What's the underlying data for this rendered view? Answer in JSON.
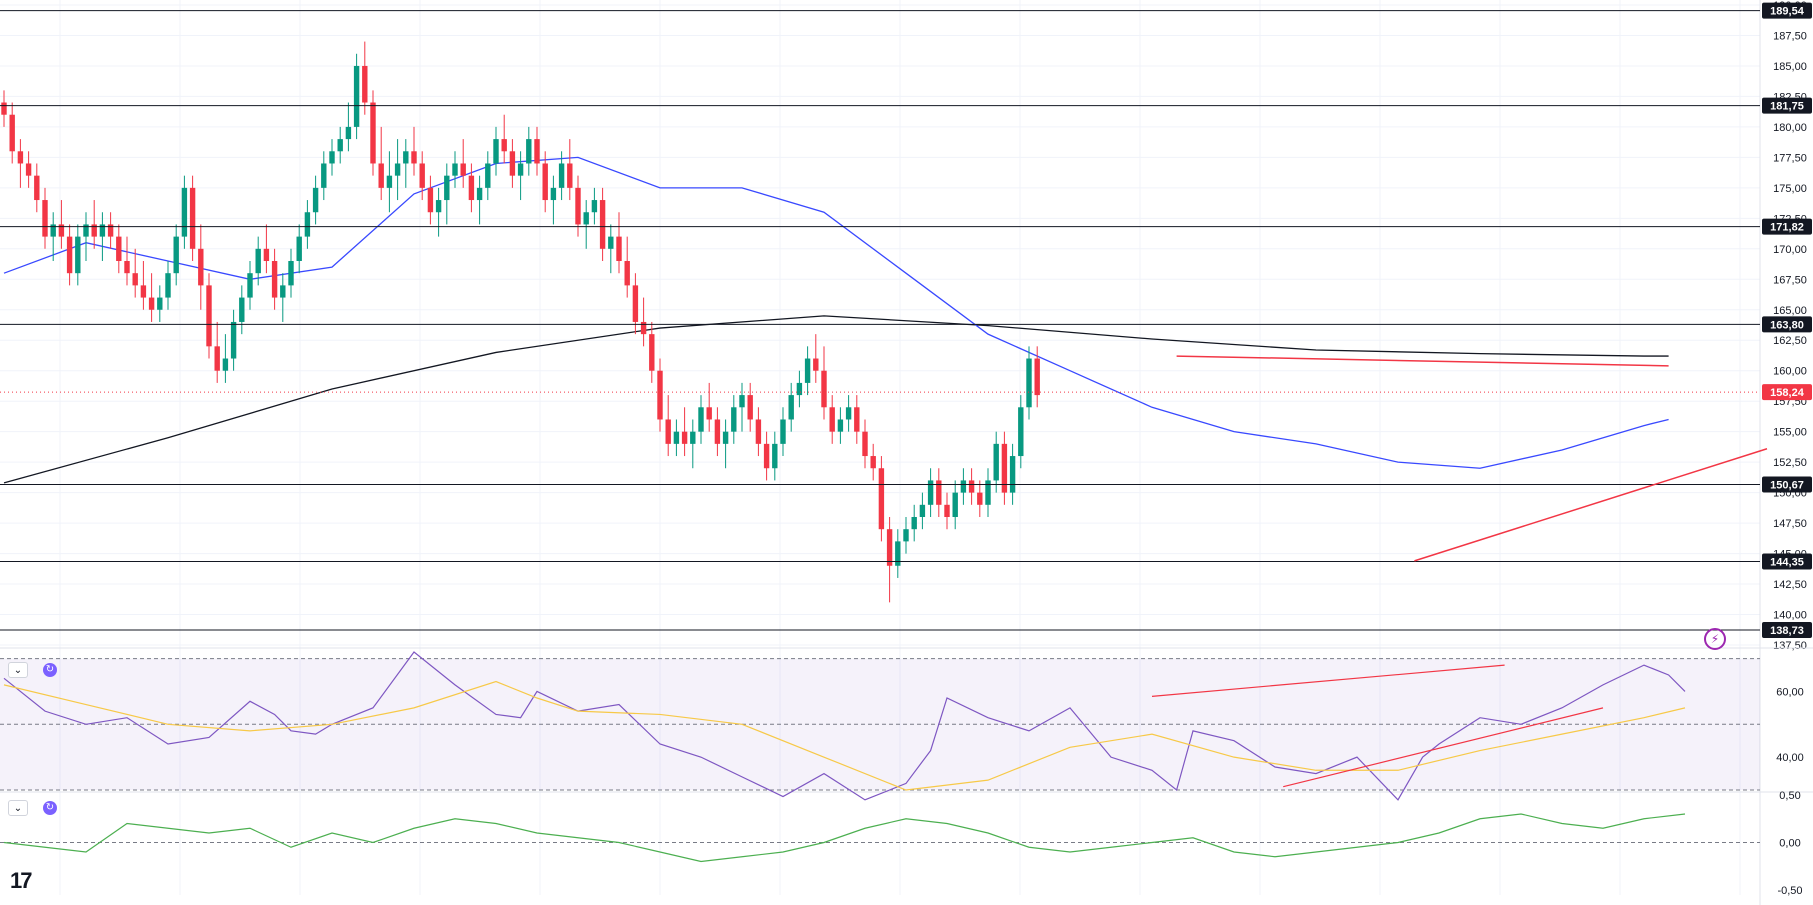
{
  "chart_data": [
    {
      "type": "candlestick",
      "title": "",
      "x_count": 216,
      "ylim": [
        137.5,
        190.0
      ],
      "price_ticks": [
        "137,50",
        "140,00",
        "142,50",
        "145,00",
        "147,50",
        "150,00",
        "152,50",
        "155,00",
        "157,50",
        "160,00",
        "162,50",
        "165,00",
        "167,50",
        "170,00",
        "172,50",
        "175,00",
        "177,50",
        "180,00",
        "182,50",
        "185,00",
        "187,50",
        "190,00"
      ],
      "current_price": {
        "label": "158,24",
        "value": 158.24,
        "color": "#f23645"
      },
      "horizontal_levels": [
        {
          "value": 189.54,
          "label": "189,54"
        },
        {
          "value": 181.75,
          "label": "181,75"
        },
        {
          "value": 171.82,
          "label": "171,82"
        },
        {
          "value": 163.8,
          "label": "163,80"
        },
        {
          "value": 150.67,
          "label": "150,67"
        },
        {
          "value": 144.35,
          "label": "144,35"
        },
        {
          "value": 138.73,
          "label": "138,73"
        }
      ],
      "trendlines": [
        {
          "name": "",
          "color": "#f23645",
          "from": [
            143,
            161.2
          ],
          "to": [
            203,
            160.4
          ]
        },
        {
          "name": "",
          "color": "#f23645",
          "from": [
            172,
            144.4
          ],
          "to": [
            215,
            153.6
          ]
        }
      ],
      "ma_fast": {
        "color": "#3949ff",
        "x": [
          0,
          10,
          20,
          30,
          40,
          50,
          60,
          70,
          80,
          90,
          100,
          110,
          120,
          130,
          140,
          150,
          160,
          170,
          180,
          190,
          200,
          203
        ],
        "y": [
          168,
          170.5,
          169,
          167.5,
          168.5,
          174.5,
          177,
          177.5,
          175,
          175,
          173,
          168,
          163,
          160,
          157,
          155,
          154,
          152.5,
          152,
          153.5,
          155.5,
          156
        ]
      },
      "ma_slow": {
        "color": "#131722",
        "x": [
          0,
          20,
          40,
          60,
          80,
          100,
          120,
          140,
          160,
          180,
          200,
          203
        ],
        "y": [
          150.8,
          154.5,
          158.5,
          161.5,
          163.5,
          164.5,
          163.7,
          162.6,
          161.7,
          161.4,
          161.2,
          161.2
        ]
      },
      "candles": {
        "up_color": "#089981",
        "down_color": "#f23645",
        "ohlc": [
          [
            182,
            183,
            180,
            181
          ],
          [
            181,
            182,
            177,
            178
          ],
          [
            178,
            179,
            175,
            177
          ],
          [
            177,
            178,
            175,
            176
          ],
          [
            176,
            177,
            173,
            174
          ],
          [
            174,
            175,
            170,
            171
          ],
          [
            171,
            173,
            169,
            172
          ],
          [
            172,
            174,
            170,
            171
          ],
          [
            171,
            172,
            167,
            168
          ],
          [
            168,
            172,
            167,
            171
          ],
          [
            171,
            173,
            169,
            172
          ],
          [
            172,
            174,
            170,
            171
          ],
          [
            171,
            173,
            169,
            172
          ],
          [
            172,
            173,
            170,
            171
          ],
          [
            171,
            172,
            168,
            169
          ],
          [
            169,
            171,
            167,
            168
          ],
          [
            168,
            170,
            166,
            167
          ],
          [
            167,
            169,
            165,
            166
          ],
          [
            166,
            168,
            164,
            165
          ],
          [
            165,
            167,
            164,
            166
          ],
          [
            166,
            169,
            165,
            168
          ],
          [
            168,
            172,
            167,
            171
          ],
          [
            171,
            176,
            170,
            175
          ],
          [
            175,
            176,
            169,
            170
          ],
          [
            170,
            172,
            165,
            167
          ],
          [
            167,
            168,
            161,
            162
          ],
          [
            162,
            164,
            159,
            160
          ],
          [
            160,
            163,
            159,
            161
          ],
          [
            161,
            165,
            160,
            164
          ],
          [
            164,
            167,
            163,
            166
          ],
          [
            166,
            169,
            165,
            168
          ],
          [
            168,
            171,
            167,
            170
          ],
          [
            170,
            172,
            168,
            169
          ],
          [
            169,
            170,
            165,
            166
          ],
          [
            166,
            168,
            164,
            167
          ],
          [
            167,
            170,
            166,
            169
          ],
          [
            169,
            172,
            168,
            171
          ],
          [
            171,
            174,
            170,
            173
          ],
          [
            173,
            176,
            172,
            175
          ],
          [
            175,
            178,
            174,
            177
          ],
          [
            177,
            179,
            176,
            178
          ],
          [
            178,
            180,
            177,
            179
          ],
          [
            179,
            182,
            178,
            180
          ],
          [
            180,
            186,
            179,
            185
          ],
          [
            185,
            187,
            181,
            182
          ],
          [
            182,
            183,
            176,
            177
          ],
          [
            177,
            180,
            174,
            175
          ],
          [
            175,
            178,
            173,
            176
          ],
          [
            176,
            179,
            174,
            177
          ],
          [
            177,
            179,
            175,
            178
          ],
          [
            178,
            180,
            176,
            177
          ],
          [
            177,
            178,
            174,
            175
          ],
          [
            175,
            176,
            172,
            173
          ],
          [
            173,
            175,
            171,
            174
          ],
          [
            174,
            177,
            172,
            176
          ],
          [
            176,
            178,
            175,
            177
          ],
          [
            177,
            179,
            175,
            176
          ],
          [
            176,
            177,
            173,
            174
          ],
          [
            174,
            176,
            172,
            175
          ],
          [
            175,
            178,
            174,
            177
          ],
          [
            177,
            180,
            176,
            179
          ],
          [
            179,
            181,
            177,
            178
          ],
          [
            178,
            179,
            175,
            176
          ],
          [
            176,
            178,
            174,
            177
          ],
          [
            177,
            180,
            176,
            179
          ],
          [
            179,
            180,
            176,
            177
          ],
          [
            177,
            178,
            173,
            174
          ],
          [
            174,
            176,
            172,
            175
          ],
          [
            175,
            178,
            174,
            177
          ],
          [
            177,
            179,
            174,
            175
          ],
          [
            175,
            176,
            171,
            172
          ],
          [
            172,
            174,
            170,
            173
          ],
          [
            173,
            175,
            172,
            174
          ],
          [
            174,
            175,
            169,
            170
          ],
          [
            170,
            172,
            168,
            171
          ],
          [
            171,
            173,
            168,
            169
          ],
          [
            169,
            171,
            166,
            167
          ],
          [
            167,
            168,
            163,
            164
          ],
          [
            164,
            166,
            162,
            163
          ],
          [
            163,
            164,
            159,
            160
          ],
          [
            160,
            161,
            155,
            156
          ],
          [
            156,
            158,
            153,
            154
          ],
          [
            154,
            156,
            153,
            155
          ],
          [
            155,
            157,
            153,
            154
          ],
          [
            154,
            156,
            152,
            155
          ],
          [
            155,
            158,
            154,
            157
          ],
          [
            157,
            159,
            155,
            156
          ],
          [
            156,
            157,
            153,
            154
          ],
          [
            154,
            156,
            152,
            155
          ],
          [
            155,
            158,
            154,
            157
          ],
          [
            157,
            159,
            155,
            158
          ],
          [
            158,
            159,
            155,
            156
          ],
          [
            156,
            157,
            153,
            154
          ],
          [
            154,
            155,
            151,
            152
          ],
          [
            152,
            155,
            151,
            154
          ],
          [
            154,
            157,
            153,
            156
          ],
          [
            156,
            159,
            155,
            158
          ],
          [
            158,
            160,
            157,
            159
          ],
          [
            159,
            162,
            158,
            161
          ],
          [
            161,
            163,
            159,
            160
          ],
          [
            160,
            162,
            156,
            157
          ],
          [
            157,
            158,
            154,
            155
          ],
          [
            155,
            157,
            154,
            156
          ],
          [
            156,
            158,
            155,
            157
          ],
          [
            157,
            158,
            154,
            155
          ],
          [
            155,
            156,
            152,
            153
          ],
          [
            153,
            154,
            151,
            152
          ],
          [
            152,
            153,
            146,
            147
          ],
          [
            147,
            148,
            141,
            144
          ],
          [
            144,
            147,
            143,
            146
          ],
          [
            146,
            148,
            145,
            147
          ],
          [
            147,
            149,
            146,
            148
          ],
          [
            148,
            150,
            147,
            149
          ],
          [
            149,
            152,
            148,
            151
          ],
          [
            151,
            152,
            148,
            149
          ],
          [
            149,
            150,
            147,
            148
          ],
          [
            148,
            151,
            147,
            150
          ],
          [
            150,
            152,
            149,
            151
          ],
          [
            151,
            152,
            149,
            150
          ],
          [
            150,
            151,
            148,
            149
          ],
          [
            149,
            152,
            148,
            151
          ],
          [
            151,
            155,
            150,
            154
          ],
          [
            154,
            155,
            149,
            150
          ],
          [
            150,
            154,
            149,
            153
          ],
          [
            153,
            158,
            152,
            157
          ],
          [
            157,
            162,
            156,
            161
          ],
          [
            161,
            162,
            157,
            158
          ]
        ]
      }
    },
    {
      "type": "line",
      "title": "",
      "ylim": [
        30,
        72
      ],
      "ticks": [
        "40,00",
        "60,00"
      ],
      "dashed_levels": [
        30,
        50,
        70
      ],
      "series": [
        {
          "name": "",
          "color": "#7e57c2",
          "x": [
            0,
            5,
            10,
            15,
            20,
            25,
            30,
            33,
            35,
            38,
            40,
            45,
            50,
            55,
            60,
            63,
            65,
            70,
            75,
            80,
            85,
            90,
            95,
            100,
            105,
            110,
            113,
            115,
            120,
            125,
            130,
            135,
            140,
            143,
            145,
            150,
            155,
            160,
            165,
            170,
            173,
            175,
            180,
            185,
            190,
            195,
            200,
            203,
            205
          ],
          "y": [
            64,
            54,
            50,
            52,
            44,
            46,
            57,
            53,
            48,
            47,
            50,
            55,
            72,
            62,
            53,
            52,
            60,
            54,
            56,
            44,
            40,
            34,
            28,
            35,
            27,
            32,
            42,
            58,
            52,
            48,
            55,
            40,
            36,
            30,
            48,
            45,
            37,
            35,
            40,
            27,
            40,
            44,
            52,
            50,
            55,
            62,
            68,
            65,
            60
          ]
        },
        {
          "name": "",
          "color": "#f7c948",
          "x": [
            0,
            10,
            20,
            30,
            40,
            50,
            60,
            65,
            70,
            80,
            90,
            100,
            110,
            120,
            130,
            140,
            150,
            160,
            170,
            180,
            190,
            200,
            205
          ],
          "y": [
            62,
            56,
            50,
            48,
            50,
            55,
            63,
            58,
            54,
            53,
            50,
            40,
            30,
            33,
            43,
            47,
            40,
            36,
            36,
            42,
            47,
            52,
            55
          ]
        }
      ],
      "trendlines": [
        {
          "name": "",
          "color": "#f23645",
          "from": [
            140,
            58.5
          ],
          "to": [
            183,
            68
          ]
        },
        {
          "name": "",
          "color": "#f23645",
          "from": [
            156,
            31
          ],
          "to": [
            195,
            55
          ]
        }
      ]
    },
    {
      "type": "line",
      "title": "",
      "ylim": [
        -0.5,
        0.5
      ],
      "ticks": [
        "0,50",
        "0,00",
        "-0,50"
      ],
      "series": [
        {
          "name": "",
          "color": "#4caf50",
          "x": [
            0,
            5,
            10,
            15,
            20,
            25,
            30,
            35,
            40,
            45,
            50,
            55,
            60,
            65,
            70,
            75,
            80,
            85,
            90,
            95,
            100,
            105,
            110,
            115,
            120,
            125,
            130,
            135,
            140,
            145,
            150,
            155,
            160,
            165,
            170,
            175,
            180,
            185,
            190,
            195,
            200,
            205
          ],
          "y": [
            0.0,
            -0.05,
            -0.1,
            0.2,
            0.15,
            0.1,
            0.15,
            -0.05,
            0.1,
            0.0,
            0.15,
            0.25,
            0.2,
            0.1,
            0.05,
            0.0,
            -0.1,
            -0.2,
            -0.15,
            -0.1,
            0.0,
            0.15,
            0.25,
            0.2,
            0.1,
            -0.05,
            -0.1,
            -0.05,
            0.0,
            0.05,
            -0.1,
            -0.15,
            -0.1,
            -0.05,
            0.0,
            0.1,
            0.25,
            0.3,
            0.2,
            0.15,
            0.25,
            0.3
          ]
        }
      ]
    }
  ]
}
